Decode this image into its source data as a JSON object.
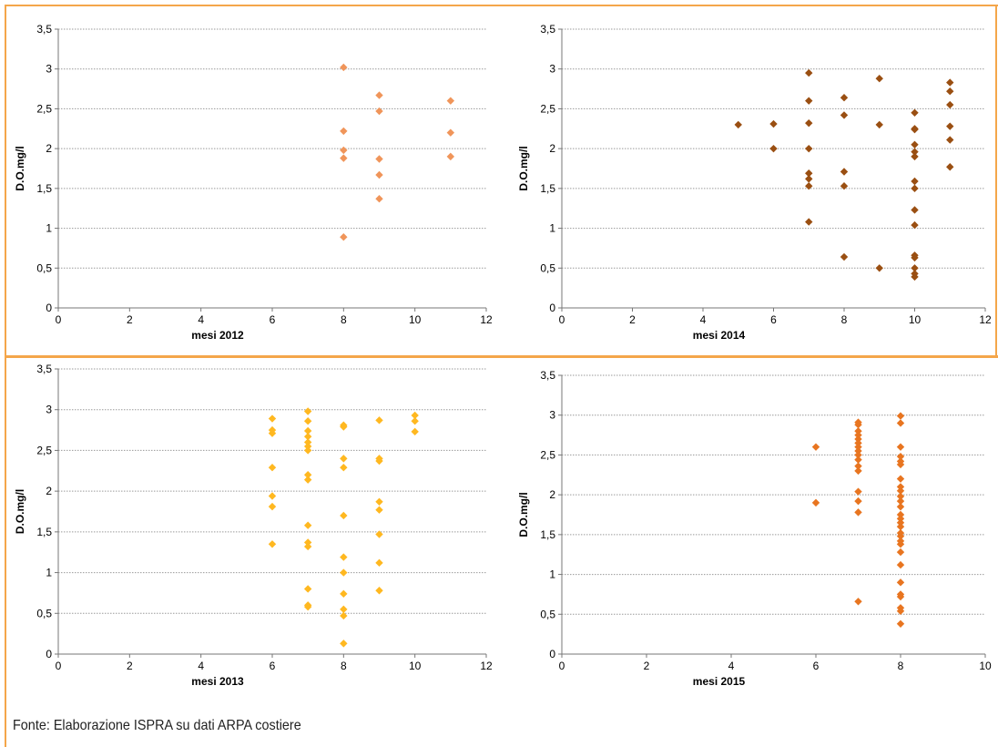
{
  "source_note": "Fonte: Elaborazione ISPRA su dati ARPA costiere",
  "chart_data": [
    {
      "id": "2012",
      "type": "scatter",
      "xlabel": "mesi 2012",
      "ylabel": "D.O.mg/l",
      "xlim": [
        0,
        12
      ],
      "xticks": [
        0,
        2,
        4,
        6,
        8,
        10,
        12
      ],
      "ylim": [
        0,
        3.5
      ],
      "yticks": [
        "0",
        "0,5",
        "1",
        "1,5",
        "2",
        "2,5",
        "3",
        "3,5"
      ],
      "grid": "horizontal",
      "marker": "diamond",
      "color": "#f0955a",
      "points": [
        [
          8,
          3.02
        ],
        [
          8,
          2.22
        ],
        [
          8,
          1.98
        ],
        [
          8,
          1.88
        ],
        [
          8,
          0.89
        ],
        [
          9,
          2.67
        ],
        [
          9,
          2.47
        ],
        [
          9,
          1.87
        ],
        [
          9,
          1.67
        ],
        [
          9,
          1.37
        ],
        [
          11,
          2.6
        ],
        [
          11,
          2.2
        ],
        [
          11,
          1.9
        ]
      ]
    },
    {
      "id": "2014",
      "type": "scatter",
      "xlabel": "mesi 2014",
      "ylabel": "D.O.mg/l",
      "xlim": [
        0,
        12
      ],
      "xticks": [
        0,
        2,
        4,
        6,
        8,
        10,
        12
      ],
      "ylim": [
        0,
        3.5
      ],
      "yticks": [
        "0",
        "0,5",
        "1",
        "1,5",
        "2",
        "2,5",
        "3",
        "3,5"
      ],
      "grid": "horizontal",
      "marker": "diamond",
      "color": "#9a4f12",
      "points": [
        [
          5,
          2.3
        ],
        [
          6,
          2.31
        ],
        [
          6,
          2.0
        ],
        [
          7,
          2.95
        ],
        [
          7,
          2.6
        ],
        [
          7,
          2.32
        ],
        [
          7,
          2.0
        ],
        [
          7,
          1.69
        ],
        [
          7,
          1.62
        ],
        [
          7,
          1.53
        ],
        [
          7,
          1.08
        ],
        [
          8,
          2.64
        ],
        [
          8,
          2.42
        ],
        [
          8,
          1.71
        ],
        [
          8,
          1.53
        ],
        [
          8,
          0.64
        ],
        [
          9,
          2.88
        ],
        [
          9,
          2.3
        ],
        [
          9,
          0.5
        ],
        [
          10,
          2.45
        ],
        [
          10,
          2.25
        ],
        [
          10,
          2.24
        ],
        [
          10,
          2.05
        ],
        [
          10,
          1.96
        ],
        [
          10,
          1.9
        ],
        [
          10,
          1.59
        ],
        [
          10,
          1.5
        ],
        [
          10,
          1.23
        ],
        [
          10,
          1.04
        ],
        [
          10,
          0.66
        ],
        [
          10,
          0.63
        ],
        [
          10,
          0.5
        ],
        [
          10,
          0.43
        ],
        [
          10,
          0.39
        ],
        [
          11,
          2.83
        ],
        [
          11,
          2.72
        ],
        [
          11,
          2.55
        ],
        [
          11,
          2.28
        ],
        [
          11,
          2.11
        ],
        [
          11,
          1.77
        ]
      ]
    },
    {
      "id": "2013",
      "type": "scatter",
      "xlabel": "mesi 2013",
      "ylabel": "D.O.mg/l",
      "xlim": [
        0,
        12
      ],
      "xticks": [
        0,
        2,
        4,
        6,
        8,
        10,
        12
      ],
      "ylim": [
        0,
        3.5
      ],
      "yticks": [
        "0",
        "0,5",
        "1",
        "1,5",
        "2",
        "2,5",
        "3",
        "3,5"
      ],
      "grid": "horizontal",
      "marker": "diamond",
      "color": "#ffb820",
      "points": [
        [
          6,
          2.89
        ],
        [
          6,
          2.75
        ],
        [
          6,
          2.71
        ],
        [
          6,
          2.29
        ],
        [
          6,
          1.94
        ],
        [
          6,
          1.81
        ],
        [
          6,
          1.35
        ],
        [
          7,
          2.98
        ],
        [
          7,
          2.86
        ],
        [
          7,
          2.74
        ],
        [
          7,
          2.67
        ],
        [
          7,
          2.6
        ],
        [
          7,
          2.55
        ],
        [
          7,
          2.5
        ],
        [
          7,
          2.2
        ],
        [
          7,
          2.14
        ],
        [
          7,
          1.58
        ],
        [
          7,
          1.37
        ],
        [
          7,
          1.32
        ],
        [
          7,
          0.8
        ],
        [
          7,
          0.6
        ],
        [
          7,
          0.58
        ],
        [
          8,
          2.81
        ],
        [
          8,
          2.79
        ],
        [
          8,
          2.4
        ],
        [
          8,
          2.29
        ],
        [
          8,
          1.7
        ],
        [
          8,
          1.19
        ],
        [
          8,
          1.0
        ],
        [
          8,
          0.74
        ],
        [
          8,
          0.55
        ],
        [
          8,
          0.47
        ],
        [
          8,
          0.13
        ],
        [
          9,
          2.87
        ],
        [
          9,
          2.4
        ],
        [
          9,
          2.37
        ],
        [
          9,
          1.87
        ],
        [
          9,
          1.77
        ],
        [
          9,
          1.47
        ],
        [
          9,
          1.12
        ],
        [
          9,
          0.78
        ],
        [
          10,
          2.93
        ],
        [
          10,
          2.86
        ],
        [
          10,
          2.73
        ]
      ]
    },
    {
      "id": "2015",
      "type": "scatter",
      "xlabel": "mesi 2015",
      "ylabel": "D.O.mg/l",
      "xlim": [
        0,
        10
      ],
      "xticks": [
        0,
        2,
        4,
        6,
        8,
        10
      ],
      "ylim": [
        0,
        3.5
      ],
      "yticks": [
        "0",
        "0,5",
        "1",
        "1,5",
        "2",
        "2,5",
        "3",
        "3,5"
      ],
      "grid": "horizontal",
      "marker": "diamond",
      "color": "#e87520",
      "points": [
        [
          6,
          2.6
        ],
        [
          6,
          1.9
        ],
        [
          7,
          2.91
        ],
        [
          7,
          2.88
        ],
        [
          7,
          2.8
        ],
        [
          7,
          2.75
        ],
        [
          7,
          2.7
        ],
        [
          7,
          2.65
        ],
        [
          7,
          2.6
        ],
        [
          7,
          2.55
        ],
        [
          7,
          2.5
        ],
        [
          7,
          2.44
        ],
        [
          7,
          2.36
        ],
        [
          7,
          2.3
        ],
        [
          7,
          2.04
        ],
        [
          7,
          1.92
        ],
        [
          7,
          1.78
        ],
        [
          7,
          0.66
        ],
        [
          8,
          2.99
        ],
        [
          8,
          2.9
        ],
        [
          8,
          2.6
        ],
        [
          8,
          2.48
        ],
        [
          8,
          2.42
        ],
        [
          8,
          2.38
        ],
        [
          8,
          2.2
        ],
        [
          8,
          2.1
        ],
        [
          8,
          2.05
        ],
        [
          8,
          1.98
        ],
        [
          8,
          1.92
        ],
        [
          8,
          1.85
        ],
        [
          8,
          1.75
        ],
        [
          8,
          1.7
        ],
        [
          8,
          1.65
        ],
        [
          8,
          1.6
        ],
        [
          8,
          1.52
        ],
        [
          8,
          1.48
        ],
        [
          8,
          1.42
        ],
        [
          8,
          1.38
        ],
        [
          8,
          1.28
        ],
        [
          8,
          1.12
        ],
        [
          8,
          0.9
        ],
        [
          8,
          0.75
        ],
        [
          8,
          0.72
        ],
        [
          8,
          0.58
        ],
        [
          8,
          0.54
        ],
        [
          8,
          0.38
        ]
      ]
    }
  ]
}
